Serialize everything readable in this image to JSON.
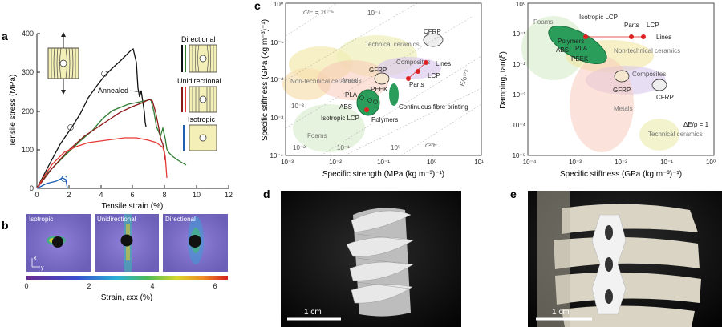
{
  "panel_labels": {
    "a": "a",
    "b": "b",
    "c": "c",
    "d": "d",
    "e": "e"
  },
  "panel_a": {
    "ylabel": "Tensile stress (MPa)",
    "xlabel": "Tensile strain (%)",
    "yticks": [
      "0",
      "100",
      "200",
      "300",
      "400"
    ],
    "xticks": [
      "0",
      "2",
      "4",
      "6",
      "8",
      "10",
      "12"
    ],
    "legend_directional": "Directional",
    "legend_unidirectional": "Unidirectional",
    "legend_isotropic": "Isotropic",
    "annotation_annealed": "Annealed",
    "colors": {
      "annealed": "#111111",
      "directional": "#2e7d32",
      "unidirectional": "#8b1a1a",
      "red": "#e53935",
      "isotropic": "#1e5fb4"
    }
  },
  "panel_b": {
    "labels": [
      "Isotropic",
      "Unidirectional",
      "Directional"
    ],
    "axis_x": "x",
    "axis_y": "y",
    "colorbar_ticks": [
      "0",
      "2",
      "4",
      "6"
    ],
    "colorbar_label": "Strain, εxx (%)"
  },
  "panel_c1": {
    "ylabel": "Specific stiffness (GPa (kg m⁻³)⁻¹)",
    "xlabel": "Specific strength (MPa (kg m⁻³)⁻¹)",
    "yticks": [
      "10⁰",
      "10⁻¹",
      "10⁻²",
      "10⁻³",
      "10⁻⁴"
    ],
    "xticks": [
      "10⁻³",
      "10⁻²",
      "10⁻¹",
      "10⁰",
      "10¹"
    ],
    "guide_top_left": "σ/E = 10⁻⁵",
    "guide_top_mid": "10⁻⁴",
    "guide_left_mid": "10⁻³",
    "guide_bottom_left": "10⁻²",
    "guide_bottom_mid1": "10⁻¹",
    "guide_bottom_mid2": "10⁰",
    "guide_sigma2": "σ²/E",
    "guide_sigma32": "E/σ³ᐟ²",
    "regions": [
      "Technical ceramics",
      "Non-technical ceramics",
      "Metals",
      "Composites",
      "CFRP",
      "GFRP",
      "Foams",
      "Polymers",
      "Continuous fibre printing"
    ],
    "points": [
      "Lines",
      "LCP",
      "Parts",
      "PLA",
      "PEEK",
      "ABS",
      "Isotropic LCP"
    ]
  },
  "panel_c2": {
    "ylabel": "Damping, tan(δ)",
    "xlabel": "Specific stiffness (GPa (kg m⁻³)⁻¹)",
    "yticks": [
      "10⁰",
      "10⁻¹",
      "10⁻²",
      "10⁻³",
      "10⁻⁴",
      "10⁻⁵"
    ],
    "xticks": [
      "10⁻⁴",
      "10⁻³",
      "10⁻²",
      "10⁻¹",
      "10⁰"
    ],
    "regions": [
      "Foams",
      "Polymers",
      "Non-technical ceramics",
      "Composites",
      "Metals",
      "Technical ceramics",
      "GFRP",
      "CFRP"
    ],
    "points": [
      "Isotropic LCP",
      "Parts",
      "LCP",
      "Lines",
      "PLA",
      "ABS",
      "PEEK"
    ],
    "guide": "ΔE/ρ = 1"
  },
  "panel_d": {
    "scale": "1 cm"
  },
  "panel_e": {
    "scale": "1 cm"
  }
}
